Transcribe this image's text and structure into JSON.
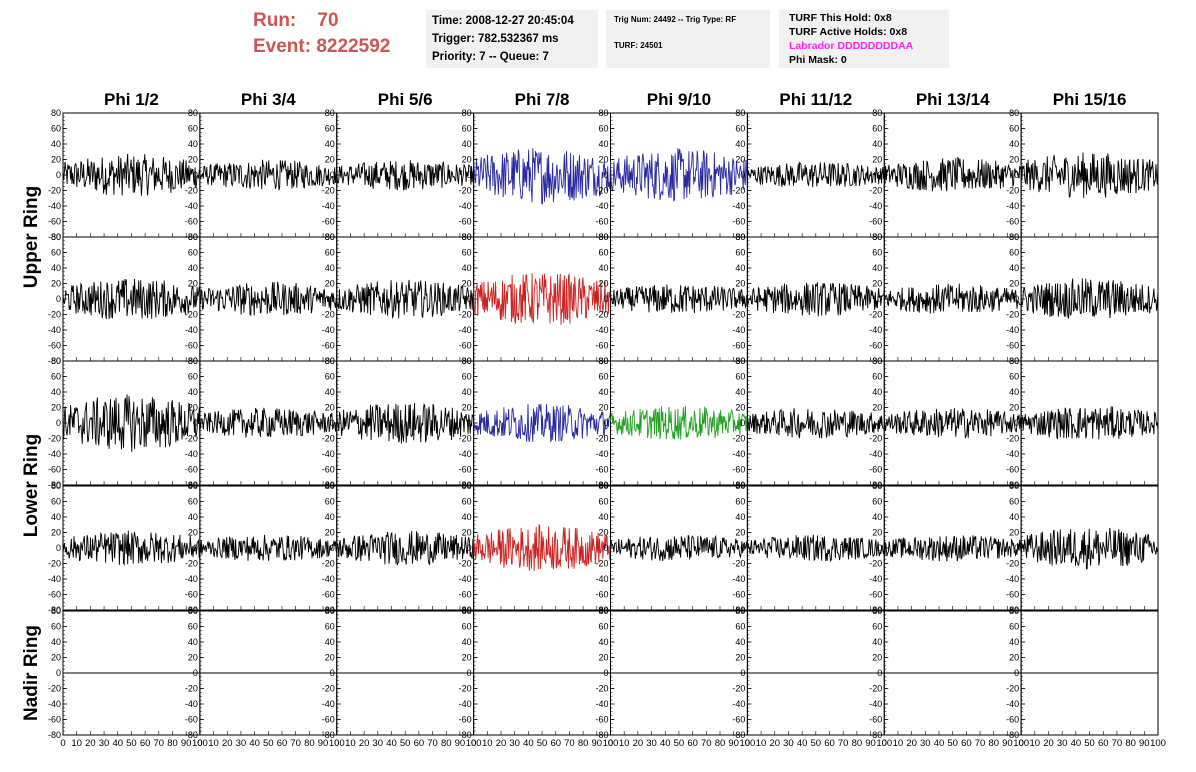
{
  "header": {
    "run_label": "Run:",
    "run_value": "70",
    "event_label": "Event:",
    "event_value": "8222592",
    "time": "Time: 2008-12-27 20:45:04",
    "trigger": "Trigger: 782.532367 ms",
    "priority": "Priority: 7 -- Queue: 7",
    "trig_num": "Trig Num: 24492 -- Trig Type: RF",
    "turf": "TURF: 24501",
    "turf_this_hold": "TURF This Hold: 0x8",
    "turf_active_holds": "TURF Active Holds: 0x8",
    "labrador": "Labrador DDDDDDDDAA",
    "phi_mask": "Phi Mask: 0"
  },
  "colors": {
    "run_text": "#cc5555",
    "labrador_text": "#ff22ff",
    "trace_default": "#000000",
    "trace_blue": "#2a2aa0",
    "trace_red": "#cc2222",
    "trace_green": "#22a022",
    "info_box_bg": "#f1f1f1"
  },
  "chart_data": {
    "type": "line",
    "columns": [
      "Phi 1/2",
      "Phi 3/4",
      "Phi 5/6",
      "Phi 7/8",
      "Phi 9/10",
      "Phi 11/12",
      "Phi 13/14",
      "Phi 15/16"
    ],
    "rings": [
      "Upper Ring",
      "Lower Ring",
      "Nadir Ring"
    ],
    "rows_per_ring": [
      2,
      2,
      1
    ],
    "ylim": [
      -80,
      80
    ],
    "xlim": [
      0,
      100
    ],
    "yticks": [
      -80,
      -60,
      -40,
      -20,
      0,
      20,
      40,
      60,
      80
    ],
    "xticks": [
      0,
      10,
      20,
      30,
      40,
      50,
      60,
      70,
      80,
      90,
      100
    ],
    "panels": [
      [
        {
          "amp": 22,
          "color": "trace_default"
        },
        {
          "amp": 16,
          "color": "trace_default"
        },
        {
          "amp": 16,
          "color": "trace_default"
        },
        {
          "amp": 30,
          "color": "trace_blue"
        },
        {
          "amp": 28,
          "color": "trace_blue"
        },
        {
          "amp": 14,
          "color": "trace_default"
        },
        {
          "amp": 18,
          "color": "trace_default"
        },
        {
          "amp": 24,
          "color": "trace_default"
        }
      ],
      [
        {
          "amp": 22,
          "color": "trace_default"
        },
        {
          "amp": 18,
          "color": "trace_default"
        },
        {
          "amp": 20,
          "color": "trace_default"
        },
        {
          "amp": 28,
          "color": "trace_red"
        },
        {
          "amp": 16,
          "color": "trace_default"
        },
        {
          "amp": 18,
          "color": "trace_default"
        },
        {
          "amp": 16,
          "color": "trace_default"
        },
        {
          "amp": 22,
          "color": "trace_default"
        }
      ],
      [
        {
          "amp": 30,
          "color": "trace_default"
        },
        {
          "amp": 16,
          "color": "trace_default"
        },
        {
          "amp": 22,
          "color": "trace_default"
        },
        {
          "amp": 20,
          "color": "trace_blue"
        },
        {
          "amp": 18,
          "color": "trace_green"
        },
        {
          "amp": 16,
          "color": "trace_default"
        },
        {
          "amp": 16,
          "color": "trace_default"
        },
        {
          "amp": 18,
          "color": "trace_default"
        }
      ],
      [
        {
          "amp": 18,
          "color": "trace_default"
        },
        {
          "amp": 14,
          "color": "trace_default"
        },
        {
          "amp": 18,
          "color": "trace_default"
        },
        {
          "amp": 24,
          "color": "trace_red"
        },
        {
          "amp": 14,
          "color": "trace_default"
        },
        {
          "amp": 14,
          "color": "trace_default"
        },
        {
          "amp": 14,
          "color": "trace_default"
        },
        {
          "amp": 22,
          "color": "trace_default"
        }
      ],
      [
        {
          "amp": 0,
          "color": "trace_default"
        },
        {
          "amp": 0,
          "color": "trace_default"
        },
        {
          "amp": 0,
          "color": "trace_default"
        },
        {
          "amp": 0,
          "color": "trace_default"
        },
        {
          "amp": 0,
          "color": "trace_default"
        },
        {
          "amp": 0,
          "color": "trace_default"
        },
        {
          "amp": 0,
          "color": "trace_default"
        },
        {
          "amp": 0,
          "color": "trace_default"
        }
      ]
    ],
    "samples": 200,
    "grid": false
  }
}
